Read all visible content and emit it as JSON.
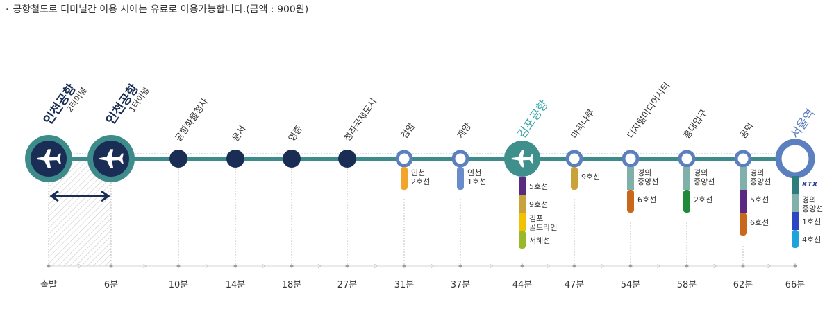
{
  "notice": "공항철도로 터미널간 이용 시에는 유료로 이용가능합니다.(금액 : 900원)",
  "colors": {
    "mainline": "#3d8b8b",
    "navy": "#1a2e55",
    "teal_ring": "#3d8b8b",
    "transfer_ring": "#5b7fbf",
    "gimpo": "#3f8f8c",
    "seoul_ring": "#5b7fbf",
    "ring_white": "#ffffff"
  },
  "stations": [
    {
      "name": "인천공항",
      "sub": "2터미널",
      "time": "출발",
      "kind": "airport-big",
      "name_color": "#1a2e55"
    },
    {
      "name": "인천공항",
      "sub": "1터미널",
      "time": "6분",
      "kind": "airport-big",
      "name_color": "#1a2e55"
    },
    {
      "name": "공항화물청사",
      "time": "10분",
      "kind": "navy"
    },
    {
      "name": "운서",
      "time": "14분",
      "kind": "navy"
    },
    {
      "name": "영종",
      "time": "18분",
      "kind": "navy"
    },
    {
      "name": "청라국제도시",
      "time": "27분",
      "kind": "navy"
    },
    {
      "name": "검암",
      "time": "31분",
      "kind": "transfer",
      "lines": [
        {
          "label": "인천\n2호선",
          "color": "#f2a52a"
        }
      ]
    },
    {
      "name": "계양",
      "time": "37분",
      "kind": "transfer",
      "lines": [
        {
          "label": "인천\n1호선",
          "color": "#6b8ccb"
        }
      ]
    },
    {
      "name": "김포공항",
      "time": "44분",
      "kind": "airport-gimpo",
      "name_color": "#3aa6a6",
      "lines": [
        {
          "label": "5호선",
          "color": "#5a2a82"
        },
        {
          "label": "9호선",
          "color": "#c9a33a"
        },
        {
          "label": "김포\n골드라인",
          "color": "#f2c200"
        },
        {
          "label": "서해선",
          "color": "#9ab92a"
        }
      ]
    },
    {
      "name": "마곡나루",
      "time": "47분",
      "kind": "transfer",
      "lines": [
        {
          "label": "9호선",
          "color": "#c9a33a"
        }
      ]
    },
    {
      "name": "디지털미디어시티",
      "time": "54분",
      "kind": "transfer",
      "lines": [
        {
          "label": "경의\n중앙선",
          "color": "#7fb1aa"
        },
        {
          "label": "6호선",
          "color": "#c9681a"
        }
      ]
    },
    {
      "name": "홍대입구",
      "time": "58분",
      "kind": "transfer",
      "lines": [
        {
          "label": "경의\n중앙선",
          "color": "#7fb1aa"
        },
        {
          "label": "2호선",
          "color": "#1e8a3a"
        }
      ]
    },
    {
      "name": "공덕",
      "time": "62분",
      "kind": "transfer",
      "lines": [
        {
          "label": "경의\n중앙선",
          "color": "#7fb1aa"
        },
        {
          "label": "5호선",
          "color": "#5a2a82"
        },
        {
          "label": "6호선",
          "color": "#c9681a"
        }
      ]
    },
    {
      "name": "서울역",
      "time": "66분",
      "kind": "terminal",
      "name_color": "#5b7fbf",
      "lines": [
        {
          "label": "KTX",
          "color": "#2e7d7d",
          "logo": true
        },
        {
          "label": "경의\n중앙선",
          "color": "#7fb1aa"
        },
        {
          "label": "1호선",
          "color": "#2f46c4"
        },
        {
          "label": "4호선",
          "color": "#1ea3dc"
        }
      ]
    }
  ],
  "icons": {
    "airplane": "airplane-icon",
    "arrow": "double-arrow-icon",
    "chevron": "chevron-right-icon"
  }
}
